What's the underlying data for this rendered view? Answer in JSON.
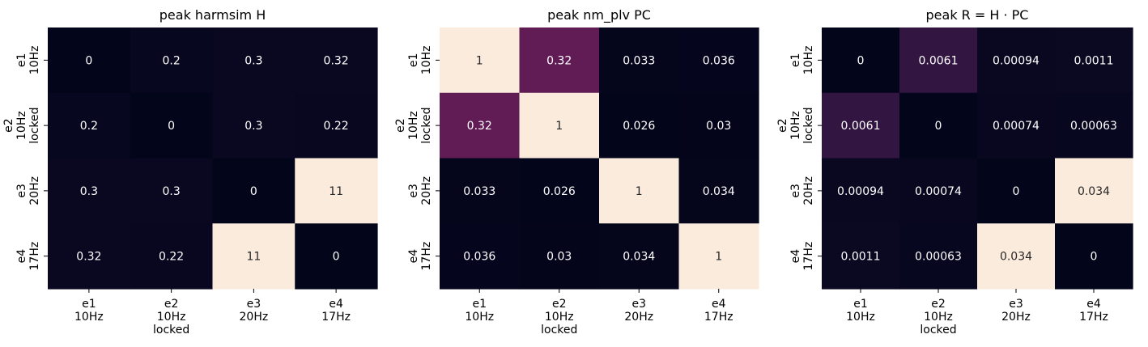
{
  "chart_data": [
    {
      "type": "heatmap",
      "title": "peak harmsim H",
      "row_labels": [
        [
          "e1",
          "10Hz"
        ],
        [
          "e2",
          "10Hz",
          "locked"
        ],
        [
          "e3",
          "20Hz"
        ],
        [
          "e4",
          "17Hz"
        ]
      ],
      "col_labels": [
        [
          "e1",
          "10Hz"
        ],
        [
          "e2",
          "10Hz",
          "locked"
        ],
        [
          "e3",
          "20Hz"
        ],
        [
          "e4",
          "17Hz"
        ]
      ],
      "values": [
        [
          0,
          0.2,
          0.3,
          0.32
        ],
        [
          0.2,
          0,
          0.3,
          0.22
        ],
        [
          0.3,
          0.3,
          0,
          11
        ],
        [
          0.32,
          0.22,
          11,
          0
        ]
      ],
      "value_labels": [
        [
          "0",
          "0.2",
          "0.3",
          "0.32"
        ],
        [
          "0.2",
          "0",
          "0.3",
          "0.22"
        ],
        [
          "0.3",
          "0.3",
          "0",
          "11"
        ],
        [
          "0.32",
          "0.22",
          "11",
          "0"
        ]
      ],
      "colormap": "rocket",
      "colorbar": false
    },
    {
      "type": "heatmap",
      "title": "peak nm_plv PC",
      "row_labels": [
        [
          "e1",
          "10Hz"
        ],
        [
          "e2",
          "10Hz",
          "locked"
        ],
        [
          "e3",
          "20Hz"
        ],
        [
          "e4",
          "17Hz"
        ]
      ],
      "col_labels": [
        [
          "e1",
          "10Hz"
        ],
        [
          "e2",
          "10Hz",
          "locked"
        ],
        [
          "e3",
          "20Hz"
        ],
        [
          "e4",
          "17Hz"
        ]
      ],
      "values": [
        [
          1,
          0.32,
          0.033,
          0.036
        ],
        [
          0.32,
          1,
          0.026,
          0.03
        ],
        [
          0.033,
          0.026,
          1,
          0.034
        ],
        [
          0.036,
          0.03,
          0.034,
          1
        ]
      ],
      "value_labels": [
        [
          "1",
          "0.32",
          "0.033",
          "0.036"
        ],
        [
          "0.32",
          "1",
          "0.026",
          "0.03"
        ],
        [
          "0.033",
          "0.026",
          "1",
          "0.034"
        ],
        [
          "0.036",
          "0.03",
          "0.034",
          "1"
        ]
      ],
      "colormap": "rocket",
      "colorbar": false
    },
    {
      "type": "heatmap",
      "title": "peak R = H · PC",
      "row_labels": [
        [
          "e1",
          "10Hz"
        ],
        [
          "e2",
          "10Hz",
          "locked"
        ],
        [
          "e3",
          "20Hz"
        ],
        [
          "e4",
          "17Hz"
        ]
      ],
      "col_labels": [
        [
          "e1",
          "10Hz"
        ],
        [
          "e2",
          "10Hz",
          "locked"
        ],
        [
          "e3",
          "20Hz"
        ],
        [
          "e4",
          "17Hz"
        ]
      ],
      "values": [
        [
          0,
          0.0061,
          0.00094,
          0.0011
        ],
        [
          0.0061,
          0,
          0.00074,
          0.00063
        ],
        [
          0.00094,
          0.00074,
          0,
          0.034
        ],
        [
          0.0011,
          0.00063,
          0.034,
          0
        ]
      ],
      "value_labels": [
        [
          "0",
          "0.0061",
          "0.00094",
          "0.0011"
        ],
        [
          "0.0061",
          "0",
          "0.00074",
          "0.00063"
        ],
        [
          "0.00094",
          "0.00074",
          "0",
          "0.034"
        ],
        [
          "0.0011",
          "0.00063",
          "0.034",
          "0"
        ]
      ],
      "colormap": "rocket",
      "colorbar": false
    }
  ]
}
